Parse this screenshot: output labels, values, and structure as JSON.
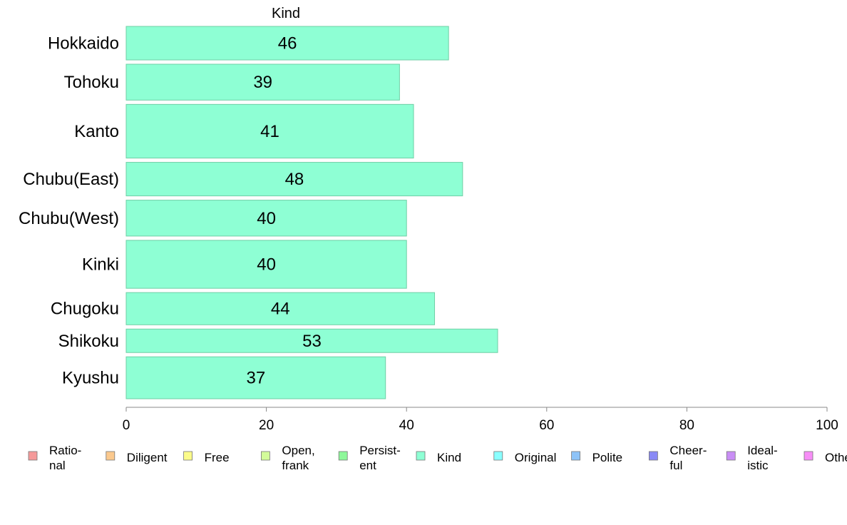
{
  "chart_data": {
    "type": "bar",
    "orientation": "horizontal",
    "title": "Kind",
    "categories": [
      "Hokkaido",
      "Tohoku",
      "Kanto",
      "Chubu(East)",
      "Chubu(West)",
      "Kinki",
      "Chugoku",
      "Shikoku",
      "Kyushu"
    ],
    "relative_heights": [
      1,
      1.07,
      1.6,
      1,
      1.07,
      1.43,
      0.96,
      0.7,
      1.25
    ],
    "series": [
      {
        "name": "Kind",
        "values": [
          46,
          39,
          41,
          48,
          40,
          40,
          44,
          53,
          37
        ],
        "color": "#8effd4"
      }
    ],
    "data_labels": [
      "46",
      "39",
      "41",
      "48",
      "40",
      "40",
      "44",
      "53",
      "37"
    ],
    "xlim": [
      0,
      100
    ],
    "xticks": [
      0,
      20,
      40,
      60,
      80,
      100
    ],
    "grid": false,
    "legend_position": "bottom",
    "legend": [
      {
        "lines": [
          "Ratio-",
          "nal"
        ],
        "color": "#f59a9a"
      },
      {
        "lines": [
          "Diligent"
        ],
        "color": "#fbc98e"
      },
      {
        "lines": [
          "Free"
        ],
        "color": "#fbfb8a"
      },
      {
        "lines": [
          "Open,",
          "frank"
        ],
        "color": "#d3fb9a"
      },
      {
        "lines": [
          "Persist-",
          "ent"
        ],
        "color": "#8ef79a"
      },
      {
        "lines": [
          "Kind"
        ],
        "color": "#8effd4"
      },
      {
        "lines": [
          "Original"
        ],
        "color": "#8affff"
      },
      {
        "lines": [
          "Polite"
        ],
        "color": "#8ec3f7"
      },
      {
        "lines": [
          "Cheer-",
          "ful"
        ],
        "color": "#8a8af5"
      },
      {
        "lines": [
          "Ideal-",
          "istic"
        ],
        "color": "#c98ef5"
      },
      {
        "lines": [
          "Other"
        ],
        "color": "#f78ef7"
      }
    ]
  }
}
